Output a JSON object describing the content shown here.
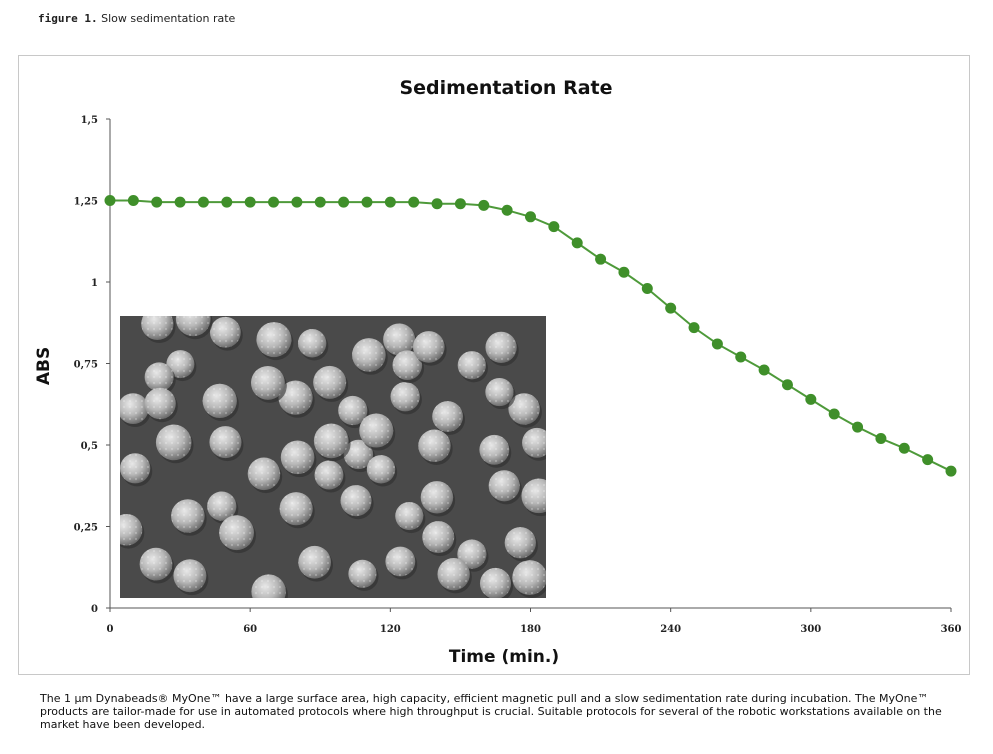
{
  "figure_label": {
    "prefix": "figure 1.",
    "text": "Slow sedimentation rate"
  },
  "caption": "The 1 µm Dynabeads® MyOne™ have a large surface area, high capacity, efficient magnetic pull and a slow sedimentation rate during incubation. The MyOne™ products are tailor-made for use in automated protocols where high throughput is crucial. Suitable protocols for several of the robotic workstations available on the market have been developed.",
  "colors": {
    "series": "#3f8f2a",
    "line": "#4e9a3a",
    "axis": "#555555"
  },
  "chart_data": {
    "type": "line",
    "title": "Sedimentation Rate",
    "xlabel": "Time (min.)",
    "ylabel": "ABS",
    "xlim": [
      0,
      360
    ],
    "ylim": [
      0,
      1.5
    ],
    "xticks": [
      "0",
      "60",
      "120",
      "180",
      "240",
      "300",
      "360"
    ],
    "yticks": [
      "0",
      "0,25",
      "0,5",
      "0,75",
      "1",
      "1,25",
      "1,5"
    ],
    "grid": false,
    "legend": "none",
    "series": [
      {
        "x": [
          0,
          10,
          20,
          30,
          40,
          50,
          60,
          70,
          80,
          90,
          100,
          110,
          120,
          130,
          140,
          150,
          160,
          170,
          180,
          190,
          200,
          210,
          220,
          230,
          240,
          250,
          260,
          270,
          280,
          290,
          300,
          310,
          320,
          330,
          340,
          350,
          360
        ],
        "y": [
          1.25,
          1.25,
          1.245,
          1.245,
          1.245,
          1.245,
          1.245,
          1.245,
          1.245,
          1.245,
          1.245,
          1.245,
          1.245,
          1.245,
          1.24,
          1.24,
          1.235,
          1.22,
          1.2,
          1.17,
          1.12,
          1.07,
          1.03,
          0.98,
          0.92,
          0.86,
          0.81,
          0.77,
          0.73,
          0.685,
          0.64,
          0.595,
          0.555,
          0.52,
          0.49,
          0.455,
          0.42
        ]
      }
    ]
  }
}
